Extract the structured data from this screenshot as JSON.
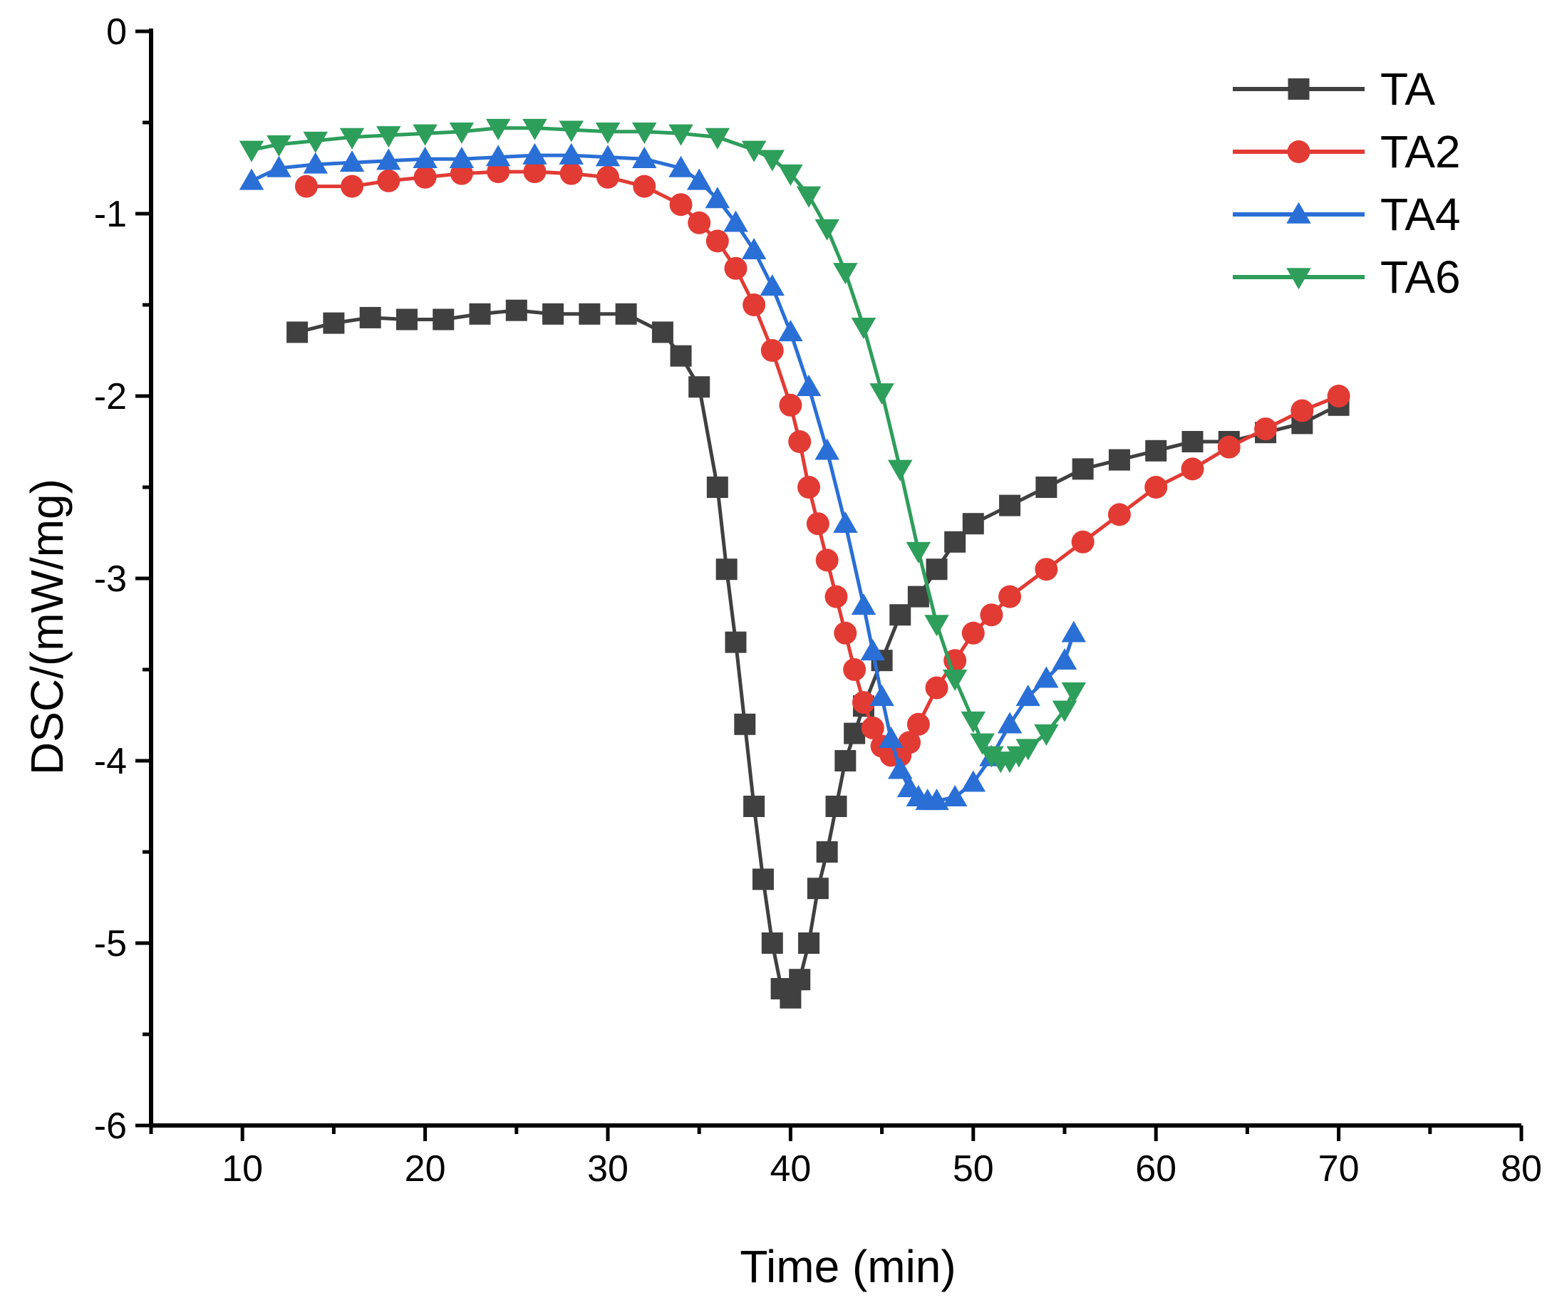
{
  "chart_data": {
    "type": "line",
    "title": "",
    "xlabel": "Time (min)",
    "ylabel": "DSC/(mW/mg)",
    "xlim": [
      5,
      80
    ],
    "ylim": [
      -6,
      0
    ],
    "xticks": [
      10,
      20,
      30,
      40,
      50,
      60,
      70,
      80
    ],
    "yticks": [
      0,
      -1,
      -2,
      -3,
      -4,
      -5,
      -6
    ],
    "grid": false,
    "legend_position": "top-right",
    "series": [
      {
        "name": "TA",
        "color": "#404040",
        "marker": "square",
        "x": [
          13,
          15,
          17,
          19,
          21,
          23,
          25,
          27,
          29,
          31,
          33,
          34,
          35,
          36,
          36.5,
          37,
          37.5,
          38,
          38.5,
          39,
          39.5,
          40,
          40.5,
          41,
          41.5,
          42,
          42.5,
          43,
          43.5,
          44,
          45,
          46,
          47,
          48,
          49,
          50,
          52,
          54,
          56,
          58,
          60,
          62,
          64,
          66,
          68,
          70
        ],
        "y": [
          -1.65,
          -1.6,
          -1.57,
          -1.58,
          -1.58,
          -1.55,
          -1.53,
          -1.55,
          -1.55,
          -1.55,
          -1.65,
          -1.78,
          -1.95,
          -2.5,
          -2.95,
          -3.35,
          -3.8,
          -4.25,
          -4.65,
          -5.0,
          -5.25,
          -5.3,
          -5.2,
          -5.0,
          -4.7,
          -4.5,
          -4.25,
          -4.0,
          -3.85,
          -3.7,
          -3.45,
          -3.2,
          -3.1,
          -2.95,
          -2.8,
          -2.7,
          -2.6,
          -2.5,
          -2.4,
          -2.35,
          -2.3,
          -2.25,
          -2.25,
          -2.2,
          -2.15,
          -2.05
        ]
      },
      {
        "name": "TA2",
        "color": "#e23b34",
        "marker": "circle",
        "x": [
          13.5,
          16,
          18,
          20,
          22,
          24,
          26,
          28,
          30,
          32,
          34,
          35,
          36,
          37,
          38,
          39,
          40,
          40.5,
          41,
          41.5,
          42,
          42.5,
          43,
          43.5,
          44,
          44.5,
          45,
          45.5,
          46,
          46.5,
          47,
          48,
          49,
          50,
          51,
          52,
          54,
          56,
          58,
          60,
          62,
          64,
          66,
          68,
          70
        ],
        "y": [
          -0.85,
          -0.85,
          -0.82,
          -0.8,
          -0.78,
          -0.77,
          -0.77,
          -0.78,
          -0.8,
          -0.85,
          -0.95,
          -1.05,
          -1.15,
          -1.3,
          -1.5,
          -1.75,
          -2.05,
          -2.25,
          -2.5,
          -2.7,
          -2.9,
          -3.1,
          -3.3,
          -3.5,
          -3.68,
          -3.82,
          -3.92,
          -3.97,
          -3.97,
          -3.9,
          -3.8,
          -3.6,
          -3.45,
          -3.3,
          -3.2,
          -3.1,
          -2.95,
          -2.8,
          -2.65,
          -2.5,
          -2.4,
          -2.28,
          -2.18,
          -2.08,
          -2.0
        ]
      },
      {
        "name": "TA4",
        "color": "#2a6fd6",
        "marker": "triangle-up",
        "x": [
          10.5,
          12,
          14,
          16,
          18,
          20,
          22,
          24,
          26,
          28,
          30,
          32,
          34,
          35,
          36,
          37,
          38,
          39,
          40,
          41,
          42,
          43,
          44,
          44.5,
          45,
          45.5,
          46,
          46.5,
          47,
          47.5,
          48,
          49,
          50,
          51,
          52,
          53,
          54,
          55,
          55.5
        ],
        "y": [
          -0.82,
          -0.75,
          -0.73,
          -0.72,
          -0.71,
          -0.7,
          -0.7,
          -0.69,
          -0.68,
          -0.68,
          -0.69,
          -0.7,
          -0.75,
          -0.82,
          -0.92,
          -1.05,
          -1.2,
          -1.4,
          -1.65,
          -1.95,
          -2.3,
          -2.7,
          -3.15,
          -3.4,
          -3.65,
          -3.88,
          -4.05,
          -4.15,
          -4.2,
          -4.22,
          -4.22,
          -4.2,
          -4.12,
          -3.98,
          -3.8,
          -3.65,
          -3.55,
          -3.45,
          -3.3
        ]
      },
      {
        "name": "TA6",
        "color": "#2e9e5b",
        "marker": "triangle-down",
        "x": [
          10.5,
          12,
          14,
          16,
          18,
          20,
          22,
          24,
          26,
          28,
          30,
          32,
          34,
          36,
          38,
          39,
          40,
          41,
          42,
          43,
          44,
          45,
          46,
          47,
          48,
          49,
          50,
          50.5,
          51,
          51.5,
          52,
          52.5,
          53,
          54,
          55,
          55.5
        ],
        "y": [
          -0.65,
          -0.62,
          -0.6,
          -0.58,
          -0.57,
          -0.56,
          -0.55,
          -0.53,
          -0.53,
          -0.54,
          -0.55,
          -0.55,
          -0.56,
          -0.58,
          -0.65,
          -0.7,
          -0.78,
          -0.9,
          -1.08,
          -1.32,
          -1.62,
          -1.98,
          -2.4,
          -2.85,
          -3.25,
          -3.55,
          -3.78,
          -3.9,
          -3.97,
          -4.0,
          -4.0,
          -3.97,
          -3.93,
          -3.85,
          -3.72,
          -3.62
        ]
      }
    ]
  }
}
